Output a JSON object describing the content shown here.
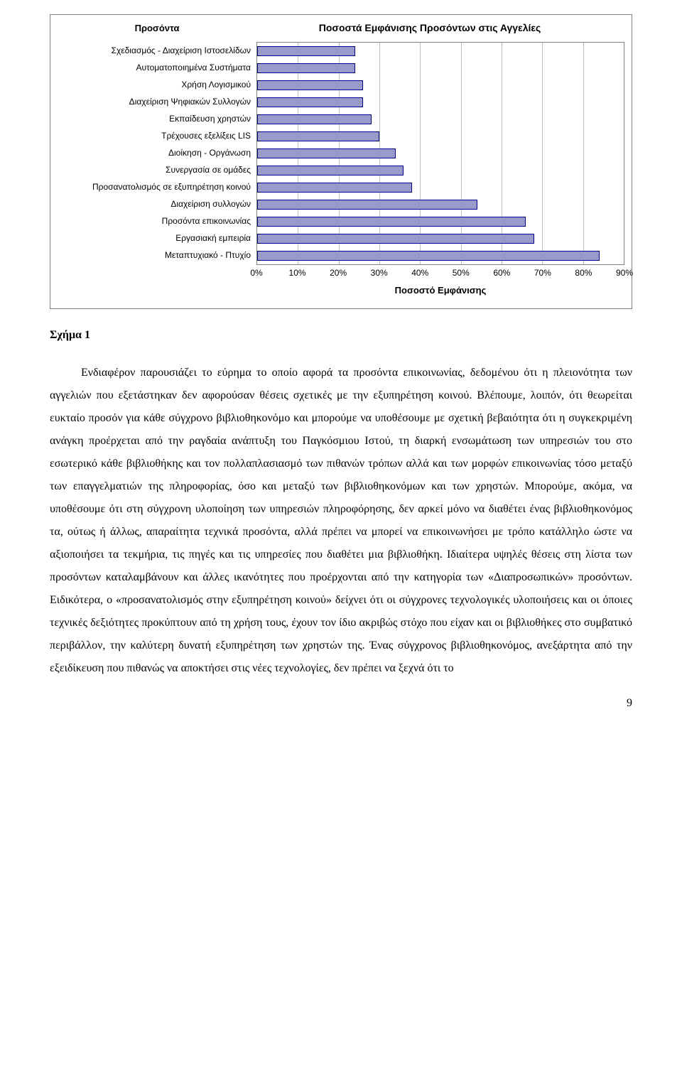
{
  "chart": {
    "type": "bar-horizontal",
    "category_axis_title": "Προσόντα",
    "title": "Ποσοστά Εμφάνισης Προσόντων στις Αγγελίες",
    "value_axis_title": "Ποσοστό Εμφάνισης",
    "xlim": [
      0,
      90
    ],
    "xtick_step": 10,
    "xtick_labels": [
      "0%",
      "10%",
      "20%",
      "30%",
      "40%",
      "50%",
      "60%",
      "70%",
      "80%",
      "90%"
    ],
    "categories": [
      "Σχεδιασμός - Διαχείριση Ιστοσελίδων",
      "Αυτοματοποιημένα Συστήματα",
      "Χρήση Λογισμικού",
      "Διαχείριση Ψηφιακών Συλλογών",
      "Εκπαίδευση χρηστών",
      "Τρέχουσες εξελίξεις LIS",
      "Διοίκηση - Οργάνωση",
      "Συνεργασία σε ομάδες",
      "Προσανατολισμός σε εξυπηρέτηση κοινού",
      "Διαχείριση συλλογών",
      "Προσόντα επικοινωνίας",
      "Εργασιακή εμπειρία",
      "Μεταπτυχιακό - Πτυχίο"
    ],
    "values": [
      24,
      24,
      26,
      26,
      28,
      30,
      34,
      36,
      38,
      54,
      66,
      68,
      84
    ],
    "bar_fill": "#9999cc",
    "bar_border": "#000080",
    "background_color": "#ffffff",
    "grid_color": "#c0c0c0",
    "plot_border_color": "#808080",
    "label_fontsize": 12,
    "title_fontsize": 14,
    "axis_title_fontsize": 13,
    "bar_row_height": 24,
    "bar_inner_height": 14
  },
  "figure_label": "Σχήμα 1",
  "body_paragraph": "Ενδιαφέρον παρουσιάζει το εύρημα το οποίο αφορά τα προσόντα επικοινωνίας, δεδομένου ότι η πλειονότητα των αγγελιών που εξετάστηκαν δεν αφορούσαν θέσεις σχετικές με την εξυπηρέτηση κοινού. Βλέπουμε, λοιπόν, ότι θεωρείται ευκταίο προσόν για κάθε σύγχρονο βιβλιοθηκονόμο και μπορούμε να υποθέσουμε με σχετική βεβαιότητα ότι η συγκεκριμένη ανάγκη προέρχεται από την ραγδαία ανάπτυξη του Παγκόσμιου Ιστού, τη διαρκή ενσωμάτωση των υπηρεσιών του στο εσωτερικό κάθε βιβλιοθήκης και τον πολλαπλασιασμό των πιθανών τρόπων αλλά και των μορφών επικοινωνίας τόσο μεταξύ των επαγγελματιών της πληροφορίας, όσο και μεταξύ των βιβλιοθηκονόμων και των χρηστών. Μπορούμε, ακόμα, να υποθέσουμε ότι στη σύγχρονη υλοποίηση των υπηρεσιών πληροφόρησης, δεν αρκεί μόνο να διαθέτει ένας βιβλιοθηκονόμος τα, ούτως ή άλλως, απαραίτητα τεχνικά προσόντα, αλλά πρέπει να μπορεί να επικοινωνήσει με τρόπο κατάλληλο ώστε να αξιοποιήσει τα τεκμήρια, τις πηγές και τις υπηρεσίες που διαθέτει μια βιβλιοθήκη. Ιδιαίτερα υψηλές θέσεις στη λίστα των προσόντων καταλαμβάνουν και άλλες ικανότητες που προέρχονται από την κατηγορία των «Διαπροσωπικών» προσόντων. Ειδικότερα, ο «προσανατολισμός στην εξυπηρέτηση κοινού» δείχνει ότι οι σύγχρονες τεχνολογικές υλοποιήσεις και οι όποιες τεχνικές δεξιότητες προκύπτουν από τη χρήση τους, έχουν τον ίδιο ακριβώς στόχο που είχαν και οι βιβλιοθήκες στο συμβατικό περιβάλλον, την καλύτερη δυνατή εξυπηρέτηση των χρηστών της. Ένας σύγχρονος βιβλιοθηκονόμος, ανεξάρτητα από την εξειδίκευση που πιθανώς να αποκτήσει στις νέες τεχνολογίες, δεν πρέπει να ξεχνά ότι το",
  "page_number": "9"
}
